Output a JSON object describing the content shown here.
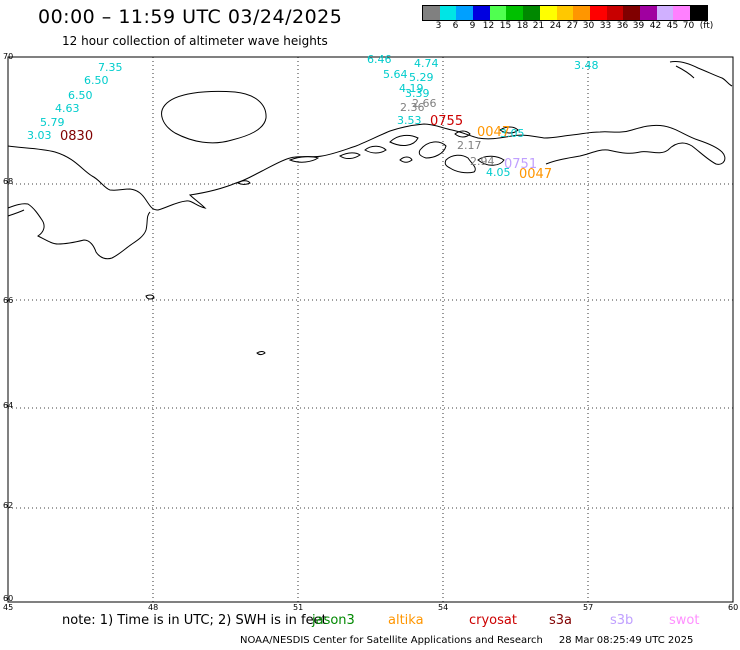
{
  "header": {
    "title": "00:00 – 11:59 UTC 03/24/2025",
    "subtitle": "12 hour collection of altimeter wave heights"
  },
  "colorbar": {
    "unit": "(ft)",
    "ticks": [
      "3",
      "6",
      "9",
      "12",
      "15",
      "18",
      "21",
      "24",
      "27",
      "30",
      "33",
      "36",
      "39",
      "42",
      "45",
      "70"
    ],
    "colors": [
      "#808080",
      "#00e5e5",
      "#00a0ff",
      "#0000e0",
      "#50ff50",
      "#00c000",
      "#008800",
      "#ffff00",
      "#ffc800",
      "#ff9600",
      "#ff0000",
      "#c80000",
      "#800000",
      "#a000a0",
      "#d0b0ff",
      "#ff80ff",
      "#000000"
    ]
  },
  "axes": {
    "lon_labels": [
      "45",
      "48",
      "51",
      "54",
      "57",
      "60"
    ],
    "lat_labels": [
      "60",
      "62",
      "64",
      "66",
      "68",
      "70"
    ]
  },
  "observations": [
    {
      "v": "7.35",
      "c": "#00cccc"
    },
    {
      "v": "6.50",
      "c": "#00cccc"
    },
    {
      "v": "6.50",
      "c": "#00cccc"
    },
    {
      "v": "4.63",
      "c": "#00cccc"
    },
    {
      "v": "5.79",
      "c": "#00cccc"
    },
    {
      "v": "3.03",
      "c": "#00cccc"
    },
    {
      "v": "6.46",
      "c": "#00cccc"
    },
    {
      "v": "4.74",
      "c": "#00cccc"
    },
    {
      "v": "5.64",
      "c": "#00cccc"
    },
    {
      "v": "5.29",
      "c": "#00cccc"
    },
    {
      "v": "4.19",
      "c": "#00cccc"
    },
    {
      "v": "3.39",
      "c": "#00cccc"
    },
    {
      "v": "2.66",
      "c": "#808080"
    },
    {
      "v": "2.36",
      "c": "#808080"
    },
    {
      "v": "3.53",
      "c": "#00cccc"
    },
    {
      "v": "2.17",
      "c": "#808080"
    },
    {
      "v": "2.94",
      "c": "#808080"
    },
    {
      "v": "4.05",
      "c": "#00cccc"
    },
    {
      "v": "3.05",
      "c": "#00cccc"
    },
    {
      "v": "3.48",
      "c": "#00cccc"
    }
  ],
  "pass_times": [
    {
      "t": "0830",
      "c": "#800000"
    },
    {
      "t": "0755",
      "c": "#cc0000"
    },
    {
      "t": "0047",
      "c": "#ff9600"
    },
    {
      "t": "0751",
      "c": "#c0a0ff"
    },
    {
      "t": "0047",
      "c": "#ff9600"
    }
  ],
  "note": "note: 1) Time is in UTC; 2) SWH is in feet",
  "satellites": [
    {
      "name": "jason3",
      "color": "#008800"
    },
    {
      "name": "altika",
      "color": "#ff9600"
    },
    {
      "name": "cryosat",
      "color": "#cc0000"
    },
    {
      "name": "s3a",
      "color": "#800000"
    },
    {
      "name": "s3b",
      "color": "#c0a0ff"
    },
    {
      "name": "swot",
      "color": "#ff90ff"
    }
  ],
  "footer": {
    "credit": "NOAA/NESDIS Center for Satellite Applications and Research",
    "timestamp": "28 Mar 08:25:49 UTC 2025"
  }
}
